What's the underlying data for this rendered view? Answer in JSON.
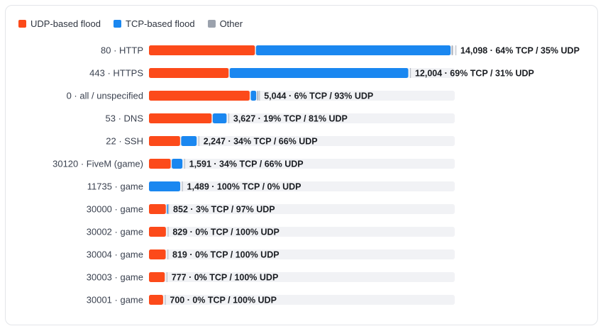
{
  "legend": {
    "udp": {
      "label": "UDP-based flood",
      "color": "#fc4a1a"
    },
    "tcp": {
      "label": "TCP-based flood",
      "color": "#1a87f0"
    },
    "other": {
      "label": "Other",
      "color": "#9ba2ad"
    }
  },
  "chart_data": {
    "type": "bar",
    "orientation": "horizontal",
    "stacked": true,
    "xlim": [
      0,
      14098
    ],
    "categories": [
      "80 · HTTP",
      "443 · HTTPS",
      "0 · all / unspecified",
      "53 · DNS",
      "22 · SSH",
      "30120 · FiveM (game)",
      "11735 · game",
      "30000 · game",
      "30002 · game",
      "30004 · game",
      "30003 · game",
      "30001 · game"
    ],
    "totals": [
      14098,
      12004,
      5044,
      3627,
      2247,
      1591,
      1489,
      852,
      829,
      819,
      777,
      700
    ],
    "series": [
      {
        "name": "UDP-based flood",
        "percent": [
          35,
          31,
          93,
          81,
          66,
          66,
          0,
          97,
          100,
          100,
          100,
          100
        ]
      },
      {
        "name": "TCP-based flood",
        "percent": [
          64,
          69,
          6,
          19,
          34,
          34,
          100,
          3,
          0,
          0,
          0,
          0
        ]
      },
      {
        "name": "Other",
        "percent": [
          1,
          0,
          1,
          0,
          0,
          0,
          0,
          0,
          0,
          0,
          0,
          0
        ]
      }
    ],
    "value_labels": [
      "14,098 · 64% TCP / 35% UDP",
      "12,004 · 69% TCP / 31% UDP",
      "5,044 · 6% TCP / 93% UDP",
      "3,627 · 19% TCP / 81% UDP",
      "2,247 · 34% TCP / 66% UDP",
      "1,591 · 34% TCP / 66% UDP",
      "1,489 · 100% TCP / 0% UDP",
      "852 · 3% TCP / 97% UDP",
      "829 · 0% TCP / 100% UDP",
      "819 · 0% TCP / 100% UDP",
      "777 · 0% TCP / 100% UDP",
      "700 · 0% TCP / 100% UDP"
    ],
    "legend_position": "top-left",
    "grid": false
  }
}
